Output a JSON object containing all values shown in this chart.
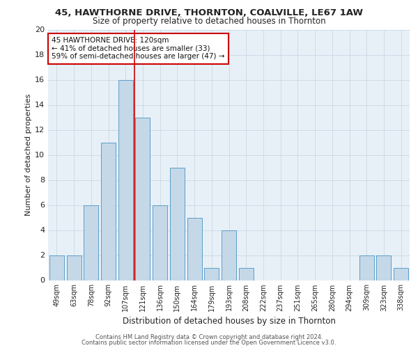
{
  "title1": "45, HAWTHORNE DRIVE, THORNTON, COALVILLE, LE67 1AW",
  "title2": "Size of property relative to detached houses in Thornton",
  "xlabel": "Distribution of detached houses by size in Thornton",
  "ylabel": "Number of detached properties",
  "categories": [
    "49sqm",
    "63sqm",
    "78sqm",
    "92sqm",
    "107sqm",
    "121sqm",
    "136sqm",
    "150sqm",
    "164sqm",
    "179sqm",
    "193sqm",
    "208sqm",
    "222sqm",
    "237sqm",
    "251sqm",
    "265sqm",
    "280sqm",
    "294sqm",
    "309sqm",
    "323sqm",
    "338sqm"
  ],
  "values": [
    2,
    2,
    6,
    11,
    16,
    13,
    6,
    9,
    5,
    1,
    4,
    1,
    0,
    0,
    0,
    0,
    0,
    0,
    2,
    2,
    1
  ],
  "bar_color": "#c5d8e8",
  "bar_edge_color": "#5a9ec9",
  "vline_index": 5,
  "annotation_line1": "45 HAWTHORNE DRIVE: 120sqm",
  "annotation_line2": "← 41% of detached houses are smaller (33)",
  "annotation_line3": "59% of semi-detached houses are larger (47) →",
  "annotation_box_color": "#ffffff",
  "annotation_border_color": "#cc0000",
  "vline_color": "#cc0000",
  "ylim": [
    0,
    20
  ],
  "yticks": [
    0,
    2,
    4,
    6,
    8,
    10,
    12,
    14,
    16,
    18,
    20
  ],
  "grid_color": "#c8d8e4",
  "bg_color": "#e8f0f7",
  "footer1": "Contains HM Land Registry data © Crown copyright and database right 2024.",
  "footer2": "Contains public sector information licensed under the Open Government Licence v3.0."
}
